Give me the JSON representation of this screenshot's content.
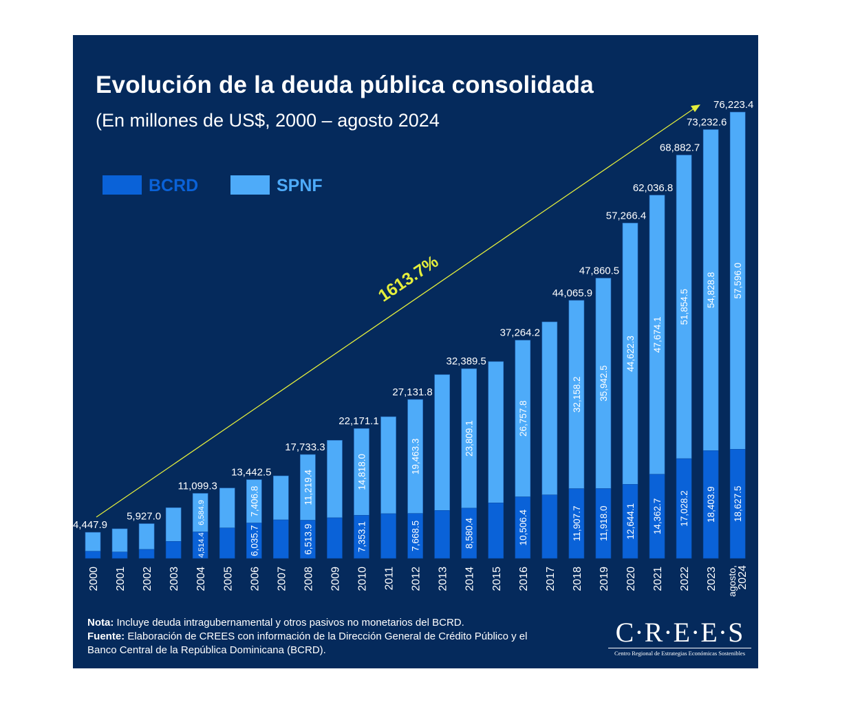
{
  "title": "Evolución de la deuda pública consolidada",
  "subtitle": "(En millones de US$, 2000 – agosto 2024",
  "legend": [
    {
      "label": "BCRD",
      "color": "#0a62d8"
    },
    {
      "label": "SPNF",
      "color": "#4eabf9"
    }
  ],
  "colors": {
    "background": "#052a5c",
    "bcrd": "#0a62d8",
    "spnf": "#4eabf9",
    "trend": "#e4ee3c",
    "text": "#ffffff"
  },
  "footer": {
    "nota_label": "Nota:",
    "nota": " Incluye deuda intragubernamental y otros pasivos no monetarios del BCRD.",
    "fuente_label": "Fuente:",
    "fuente": " Elaboración de CREES con información de la Dirección General de Crédito Público y el",
    "fuente2": "Banco Central de la República Dominicana (BCRD)."
  },
  "logo": {
    "main": "C·R·E·E·S",
    "sub": "Centro Regional de Estrategias Económicas Sostenibles"
  },
  "chart_data": {
    "type": "bar",
    "stacked": true,
    "title": "Evolución de la deuda pública consolidada",
    "subtitle": "(En millones de US$, 2000 – agosto 2024",
    "categories": [
      "2000",
      "2001",
      "2002",
      "2003",
      "2004",
      "2005",
      "2006",
      "2007",
      "2008",
      "2009",
      "2010",
      "2011",
      "2012",
      "2013",
      "2014",
      "2015",
      "2016",
      "2017",
      "2018",
      "2019",
      "2020",
      "2021",
      "2022",
      "2023",
      "agosto, 2024"
    ],
    "series": [
      {
        "name": "BCRD",
        "values": [
          1210,
          1090,
          1530,
          2900,
          4514.4,
          5200,
          6035.7,
          6570,
          6513.9,
          6930,
          7353.1,
          7630,
          7668.5,
          8180,
          8580.4,
          9470,
          10506.4,
          10840,
          11907.7,
          11918.0,
          12644.1,
          14362.7,
          17028.2,
          18403.9,
          18627.5
        ],
        "labeled": [
          false,
          false,
          false,
          false,
          true,
          false,
          true,
          false,
          true,
          false,
          true,
          false,
          true,
          false,
          true,
          false,
          true,
          false,
          true,
          true,
          true,
          true,
          true,
          true,
          true
        ]
      },
      {
        "name": "SPNF",
        "values": [
          3237.9,
          3960,
          4397,
          5750,
          6584.9,
          6810,
          7406.8,
          7520,
          11219.4,
          13230,
          14818.0,
          16560,
          19463.3,
          23200,
          23809.1,
          24140,
          26757.8,
          29550,
          32158.2,
          35942.5,
          44622.3,
          47674.1,
          51854.5,
          54828.8,
          57596.0
        ],
        "labeled": [
          false,
          false,
          false,
          false,
          true,
          false,
          true,
          false,
          true,
          false,
          true,
          false,
          true,
          false,
          true,
          false,
          true,
          false,
          true,
          true,
          true,
          true,
          true,
          true,
          true
        ]
      }
    ],
    "totals": [
      4447.9,
      null,
      5927.0,
      null,
      11099.3,
      null,
      13442.5,
      null,
      17733.3,
      null,
      22171.1,
      null,
      27131.8,
      null,
      32389.5,
      null,
      37264.2,
      null,
      44065.9,
      47860.5,
      57266.4,
      62036.8,
      68882.7,
      73232.6,
      76223.4
    ],
    "annotation": "1613.7%",
    "ylim": [
      0,
      76223.4
    ],
    "grid": false,
    "legend_position": "top-left"
  }
}
